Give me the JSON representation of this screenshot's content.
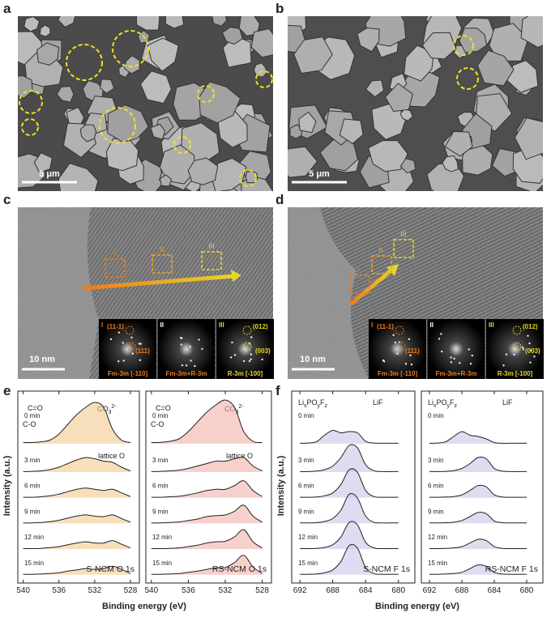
{
  "panels": {
    "a": {
      "label": "a",
      "scale": "5 μm"
    },
    "b": {
      "label": "b",
      "scale": "5 μm"
    },
    "c": {
      "label": "c",
      "scale": "10 nm",
      "regions": [
        "I",
        "II",
        "III"
      ],
      "insets": [
        {
          "index": "I",
          "spots": [
            "(11-1)",
            "(111)"
          ],
          "phase": "Fm-3m [-110]"
        },
        {
          "index": "II",
          "phase": "Fm-3m+R-3m"
        },
        {
          "index": "III",
          "spots": [
            "(012)",
            "(003)"
          ],
          "phase": "R-3m [-100]"
        }
      ]
    },
    "d": {
      "label": "d",
      "scale": "10 nm",
      "regions": [
        "I",
        "II",
        "III"
      ],
      "insets": [
        {
          "index": "I",
          "spots": [
            "(11-1)",
            "(111)"
          ],
          "phase": "Fm-3m [-110]"
        },
        {
          "index": "II",
          "phase": "Fm-3m+R-3m"
        },
        {
          "index": "III",
          "spots": [
            "(012)",
            "(003)"
          ],
          "phase": "R-3m [-100]"
        }
      ]
    },
    "e": {
      "label": "e",
      "ylabel": "Intensity (a.u.)",
      "xlabel": "Binding energy (eV)"
    },
    "f": {
      "label": "f",
      "ylabel": "Intensity (a.u.)",
      "xlabel": "Binding energy (eV)"
    }
  },
  "chart_data": [
    {
      "type": "line",
      "title": "S-NCM O 1s",
      "x": [
        540,
        539,
        538,
        537,
        536,
        535,
        534,
        533,
        532,
        531,
        530,
        529,
        528
      ],
      "xlim": [
        540.6,
        527
      ],
      "xticks": [
        540,
        536,
        532,
        528
      ],
      "fill": "#f3c98e",
      "annotations": {
        "c_o_double": "C=O",
        "c_o": "C-O",
        "carbonate": [
          "CO",
          "3",
          "2-"
        ],
        "lattice": "lattice O"
      },
      "series": [
        {
          "name": "0 min",
          "color": "#222222",
          "values": [
            0.05,
            0.05,
            0.08,
            0.15,
            0.4,
            0.8,
            1.2,
            1.5,
            1.7,
            1.5,
            0.6,
            0.15,
            0.05
          ]
        },
        {
          "name": "3 min",
          "color": "#222222",
          "values": [
            0.02,
            0.03,
            0.05,
            0.1,
            0.2,
            0.35,
            0.5,
            0.6,
            0.55,
            0.45,
            0.4,
            0.2,
            0.05
          ]
        },
        {
          "name": "6 min",
          "color": "#222222",
          "values": [
            0.02,
            0.02,
            0.04,
            0.08,
            0.15,
            0.25,
            0.35,
            0.4,
            0.35,
            0.3,
            0.35,
            0.2,
            0.05
          ]
        },
        {
          "name": "9 min",
          "color": "#222222",
          "values": [
            0.02,
            0.02,
            0.04,
            0.07,
            0.13,
            0.22,
            0.3,
            0.35,
            0.3,
            0.28,
            0.35,
            0.2,
            0.05
          ]
        },
        {
          "name": "12 min",
          "color": "#222222",
          "values": [
            0.02,
            0.02,
            0.03,
            0.06,
            0.1,
            0.18,
            0.25,
            0.3,
            0.25,
            0.25,
            0.35,
            0.2,
            0.05
          ]
        },
        {
          "name": "15 min",
          "color": "#222222",
          "values": [
            0.02,
            0.02,
            0.03,
            0.05,
            0.08,
            0.15,
            0.2,
            0.25,
            0.22,
            0.25,
            0.35,
            0.22,
            0.05
          ]
        }
      ]
    },
    {
      "type": "line",
      "title": "RS-NCM O 1s",
      "x": [
        540,
        539,
        538,
        537,
        536,
        535,
        534,
        533,
        532,
        531,
        530,
        529,
        528
      ],
      "xlim": [
        540.6,
        527
      ],
      "xticks": [
        540,
        536,
        532,
        528
      ],
      "fill": "#f3b1a8",
      "annotations": {
        "c_o_double": "C=O",
        "c_o": "C-O",
        "carbonate": [
          "CO",
          "3",
          "2-"
        ],
        "lattice": "lattice O"
      },
      "series": [
        {
          "name": "0 min",
          "color": "#222222",
          "values": [
            0.05,
            0.06,
            0.1,
            0.2,
            0.5,
            0.9,
            1.3,
            1.6,
            1.8,
            1.5,
            0.5,
            0.1,
            0.05
          ]
        },
        {
          "name": "3 min",
          "color": "#222222",
          "values": [
            0.02,
            0.03,
            0.05,
            0.08,
            0.15,
            0.25,
            0.35,
            0.45,
            0.45,
            0.55,
            0.6,
            0.25,
            0.05
          ]
        },
        {
          "name": "6 min",
          "color": "#222222",
          "values": [
            0.02,
            0.02,
            0.04,
            0.06,
            0.12,
            0.2,
            0.3,
            0.35,
            0.35,
            0.5,
            0.7,
            0.3,
            0.05
          ]
        },
        {
          "name": "9 min",
          "color": "#222222",
          "values": [
            0.02,
            0.02,
            0.04,
            0.06,
            0.12,
            0.18,
            0.28,
            0.32,
            0.35,
            0.5,
            0.75,
            0.3,
            0.05
          ]
        },
        {
          "name": "12 min",
          "color": "#222222",
          "values": [
            0.02,
            0.02,
            0.03,
            0.05,
            0.1,
            0.16,
            0.25,
            0.3,
            0.32,
            0.5,
            0.8,
            0.3,
            0.05
          ]
        },
        {
          "name": "15 min",
          "color": "#222222",
          "values": [
            0.02,
            0.02,
            0.03,
            0.05,
            0.1,
            0.15,
            0.22,
            0.28,
            0.3,
            0.5,
            0.8,
            0.32,
            0.05
          ]
        }
      ]
    },
    {
      "type": "line",
      "title": "S-NCM F 1s",
      "x": [
        692,
        691,
        690,
        689,
        688,
        687,
        686,
        685,
        684,
        683,
        682,
        681,
        680
      ],
      "xlim": [
        693,
        678
      ],
      "xticks": [
        692,
        688,
        684,
        680
      ],
      "fill": "#cbc3e8",
      "annotations": {
        "phosphate": [
          "Li",
          "x",
          "PO",
          "y",
          "F",
          "z"
        ],
        "lif": "LiF"
      },
      "series": [
        {
          "name": "0 min",
          "color": "#222222",
          "values": [
            0.02,
            0.03,
            0.08,
            0.35,
            0.55,
            0.45,
            0.5,
            0.45,
            0.1,
            0.03,
            0.02,
            0.02,
            0.02
          ]
        },
        {
          "name": "3 min",
          "color": "#222222",
          "values": [
            0.02,
            0.02,
            0.04,
            0.1,
            0.25,
            0.6,
            1.1,
            1.0,
            0.3,
            0.06,
            0.02,
            0.02,
            0.02
          ]
        },
        {
          "name": "6 min",
          "color": "#222222",
          "values": [
            0.02,
            0.02,
            0.03,
            0.08,
            0.2,
            0.55,
            1.15,
            1.05,
            0.3,
            0.05,
            0.02,
            0.02,
            0.02
          ]
        },
        {
          "name": "9 min",
          "color": "#222222",
          "values": [
            0.02,
            0.02,
            0.03,
            0.08,
            0.2,
            0.55,
            1.2,
            1.05,
            0.3,
            0.05,
            0.02,
            0.02,
            0.02
          ]
        },
        {
          "name": "12 min",
          "color": "#222222",
          "values": [
            0.02,
            0.02,
            0.03,
            0.07,
            0.18,
            0.5,
            1.1,
            1.0,
            0.28,
            0.05,
            0.02,
            0.02,
            0.02
          ]
        },
        {
          "name": "15 min",
          "color": "#222222",
          "values": [
            0.02,
            0.02,
            0.03,
            0.08,
            0.2,
            0.55,
            1.2,
            1.1,
            0.3,
            0.05,
            0.02,
            0.02,
            0.02
          ]
        }
      ]
    },
    {
      "type": "line",
      "title": "RS-NCM F 1s",
      "x": [
        692,
        691,
        690,
        689,
        688,
        687,
        686,
        685,
        684,
        683,
        682,
        681,
        680
      ],
      "xlim": [
        693,
        678
      ],
      "xticks": [
        692,
        688,
        684,
        680
      ],
      "fill": "#cbc3e8",
      "annotations": {
        "phosphate": [
          "Li",
          "x",
          "PO",
          "y",
          "F",
          "z"
        ],
        "lif": "LiF"
      },
      "series": [
        {
          "name": "0 min",
          "color": "#222222",
          "values": [
            0.02,
            0.03,
            0.08,
            0.3,
            0.5,
            0.35,
            0.3,
            0.2,
            0.05,
            0.02,
            0.02,
            0.02,
            0.02
          ]
        },
        {
          "name": "3 min",
          "color": "#222222",
          "values": [
            0.02,
            0.02,
            0.03,
            0.06,
            0.15,
            0.35,
            0.6,
            0.55,
            0.15,
            0.04,
            0.02,
            0.02,
            0.02
          ]
        },
        {
          "name": "6 min",
          "color": "#222222",
          "values": [
            0.02,
            0.02,
            0.03,
            0.05,
            0.12,
            0.3,
            0.5,
            0.45,
            0.12,
            0.03,
            0.02,
            0.02,
            0.02
          ]
        },
        {
          "name": "9 min",
          "color": "#222222",
          "values": [
            0.02,
            0.02,
            0.03,
            0.05,
            0.12,
            0.28,
            0.45,
            0.4,
            0.1,
            0.03,
            0.02,
            0.02,
            0.02
          ]
        },
        {
          "name": "12 min",
          "color": "#222222",
          "values": [
            0.02,
            0.02,
            0.03,
            0.05,
            0.1,
            0.25,
            0.4,
            0.35,
            0.1,
            0.03,
            0.02,
            0.02,
            0.02
          ]
        },
        {
          "name": "15 min",
          "color": "#222222",
          "values": [
            0.02,
            0.02,
            0.03,
            0.05,
            0.1,
            0.25,
            0.4,
            0.35,
            0.1,
            0.03,
            0.02,
            0.02,
            0.02
          ]
        }
      ]
    }
  ]
}
